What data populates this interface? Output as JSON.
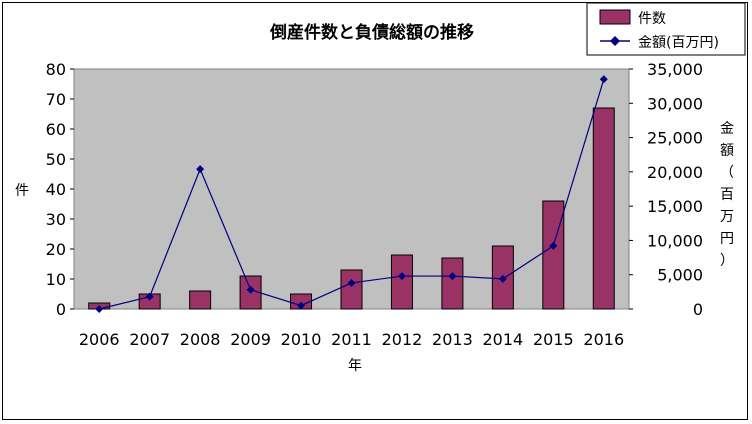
{
  "chart_data": {
    "type": "bar",
    "title": "倒産件数と負債総額の推移",
    "xlabel": "年",
    "categories": [
      "2006",
      "2007",
      "2008",
      "2009",
      "2010",
      "2011",
      "2012",
      "2013",
      "2014",
      "2015",
      "2016"
    ],
    "series": [
      {
        "name": "件数",
        "type": "bar",
        "axis": "left",
        "color": "#993366",
        "values": [
          2,
          5,
          6,
          11,
          5,
          13,
          18,
          17,
          21,
          36,
          67
        ]
      },
      {
        "name": "金額(百万円)",
        "type": "line",
        "axis": "right",
        "color": "#000080",
        "marker": "diamond",
        "values": [
          0,
          1800,
          20400,
          2800,
          500,
          3800,
          4800,
          4800,
          4400,
          9200,
          33500
        ]
      }
    ],
    "y_left": {
      "label": "件",
      "range": [
        0,
        80
      ],
      "ticks": [
        "0",
        "10",
        "20",
        "30",
        "40",
        "50",
        "60",
        "70",
        "80"
      ]
    },
    "y_right": {
      "label": "金額（百万円）",
      "range": [
        0,
        35000
      ],
      "ticks": [
        "0",
        "5,000",
        "10,000",
        "15,000",
        "20,000",
        "25,000",
        "30,000",
        "35,000"
      ]
    },
    "plot_background": "#c0c0c0",
    "grid": false,
    "legend_position": "top-right"
  }
}
